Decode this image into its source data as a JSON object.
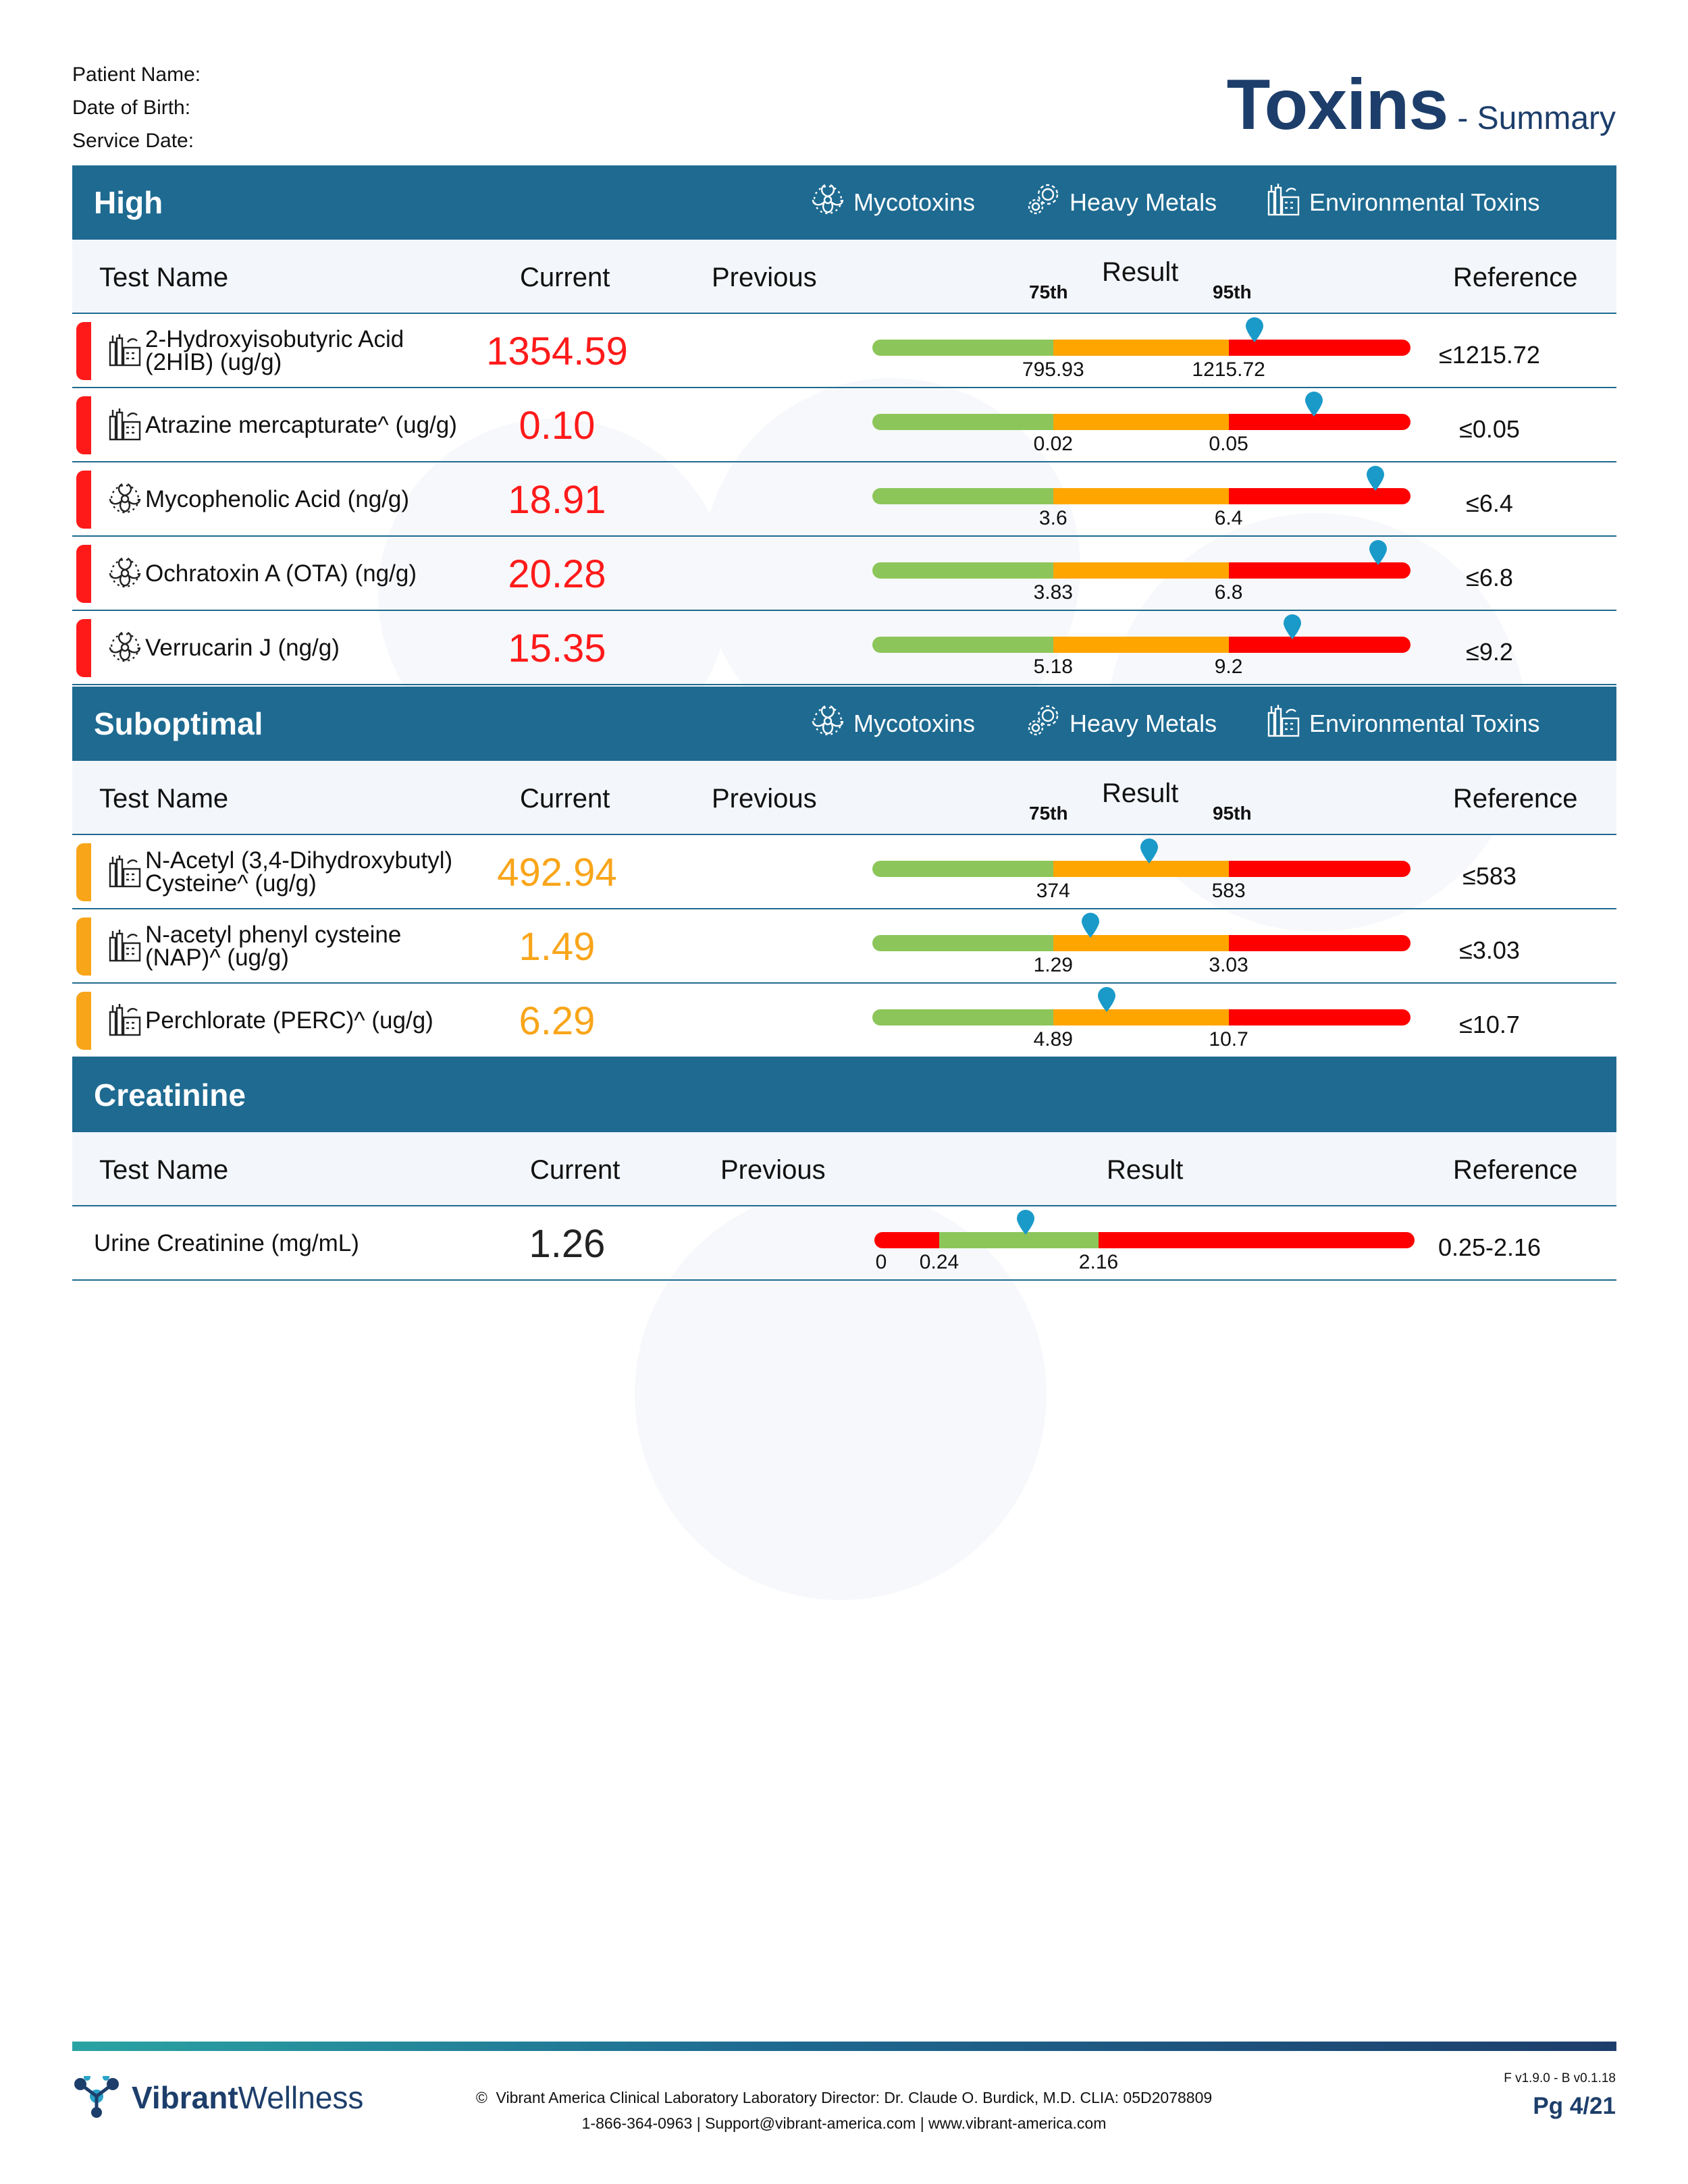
{
  "patient": {
    "name_label": "Patient Name:",
    "dob_label": "Date of Birth:",
    "service_label": "Service Date:"
  },
  "header": {
    "title": "Toxins",
    "subtitle": "- Summary"
  },
  "legend": {
    "mycotoxins": "Mycotoxins",
    "heavy_metals": "Heavy Metals",
    "environmental": "Environmental Toxins"
  },
  "columns": {
    "test_name": "Test Name",
    "current": "Current",
    "previous": "Previous",
    "result": "Result",
    "reference": "Reference",
    "p75": "75th",
    "p95": "95th"
  },
  "colors": {
    "high": "#ff1a1a",
    "suboptimal": "#f9a51a",
    "green": "#8cc65a",
    "orange": "#ffa500",
    "red": "#ff0000",
    "pin": "#1a9ac9",
    "header_blue": "#1e6a91",
    "title_navy": "#1d3e6b"
  },
  "sections": {
    "high": {
      "title": "High",
      "rows": [
        {
          "name": "2-Hydroxyisobutyric Acid (2HIB) (ug/g)",
          "icon": "environmental-icon",
          "current": "1354.59",
          "p75": "795.93",
          "p95": "1215.72",
          "reference": "≤1215.72",
          "marker_fraction": 0.71
        },
        {
          "name": "Atrazine mercapturate^ (ug/g)",
          "icon": "environmental-icon",
          "current": "0.10",
          "p75": "0.02",
          "p95": "0.05",
          "reference": "≤0.05",
          "marker_fraction": 0.82
        },
        {
          "name": "Mycophenolic Acid (ng/g)",
          "icon": "mycotoxin-icon",
          "current": "18.91",
          "p75": "3.6",
          "p95": "6.4",
          "reference": "≤6.4",
          "marker_fraction": 0.935
        },
        {
          "name": "Ochratoxin A (OTA) (ng/g)",
          "icon": "mycotoxin-icon",
          "current": "20.28",
          "p75": "3.83",
          "p95": "6.8",
          "reference": "≤6.8",
          "marker_fraction": 0.94
        },
        {
          "name": "Verrucarin J (ng/g)",
          "icon": "mycotoxin-icon",
          "current": "15.35",
          "p75": "5.18",
          "p95": "9.2",
          "reference": "≤9.2",
          "marker_fraction": 0.78
        }
      ]
    },
    "suboptimal": {
      "title": "Suboptimal",
      "rows": [
        {
          "name": "N-Acetyl (3,4-Dihydroxybutyl) Cysteine^ (ug/g)",
          "icon": "environmental-icon",
          "current": "492.94",
          "p75": "374",
          "p95": "583",
          "reference": "≤583",
          "marker_fraction": 0.515
        },
        {
          "name": "N-acetyl phenyl cysteine (NAP)^ (ug/g)",
          "icon": "environmental-icon",
          "current": "1.49",
          "p75": "1.29",
          "p95": "3.03",
          "reference": "≤3.03",
          "marker_fraction": 0.405
        },
        {
          "name": "Perchlorate (PERC)^ (ug/g)",
          "icon": "environmental-icon",
          "current": "6.29",
          "p75": "4.89",
          "p95": "10.7",
          "reference": "≤10.7",
          "marker_fraction": 0.435
        }
      ]
    },
    "creatinine": {
      "title": "Creatinine",
      "row": {
        "name": "Urine Creatinine (mg/mL)",
        "current": "1.26",
        "t0": "0",
        "t1": "0.24",
        "t2": "2.16",
        "reference": "0.25-2.16",
        "marker_fraction": 0.28
      }
    }
  },
  "footer": {
    "brand_bold": "Vibrant",
    "brand_light": "Wellness",
    "line1": "Vibrant America Clinical Laboratory Laboratory Director: Dr. Claude O. Burdick, M.D. CLIA: 05D2078809",
    "line2": "1-866-364-0963 | Support@vibrant-america.com | www.vibrant-america.com",
    "version": "F v1.9.0 - B v0.1.18",
    "page": "Pg 4/21"
  }
}
